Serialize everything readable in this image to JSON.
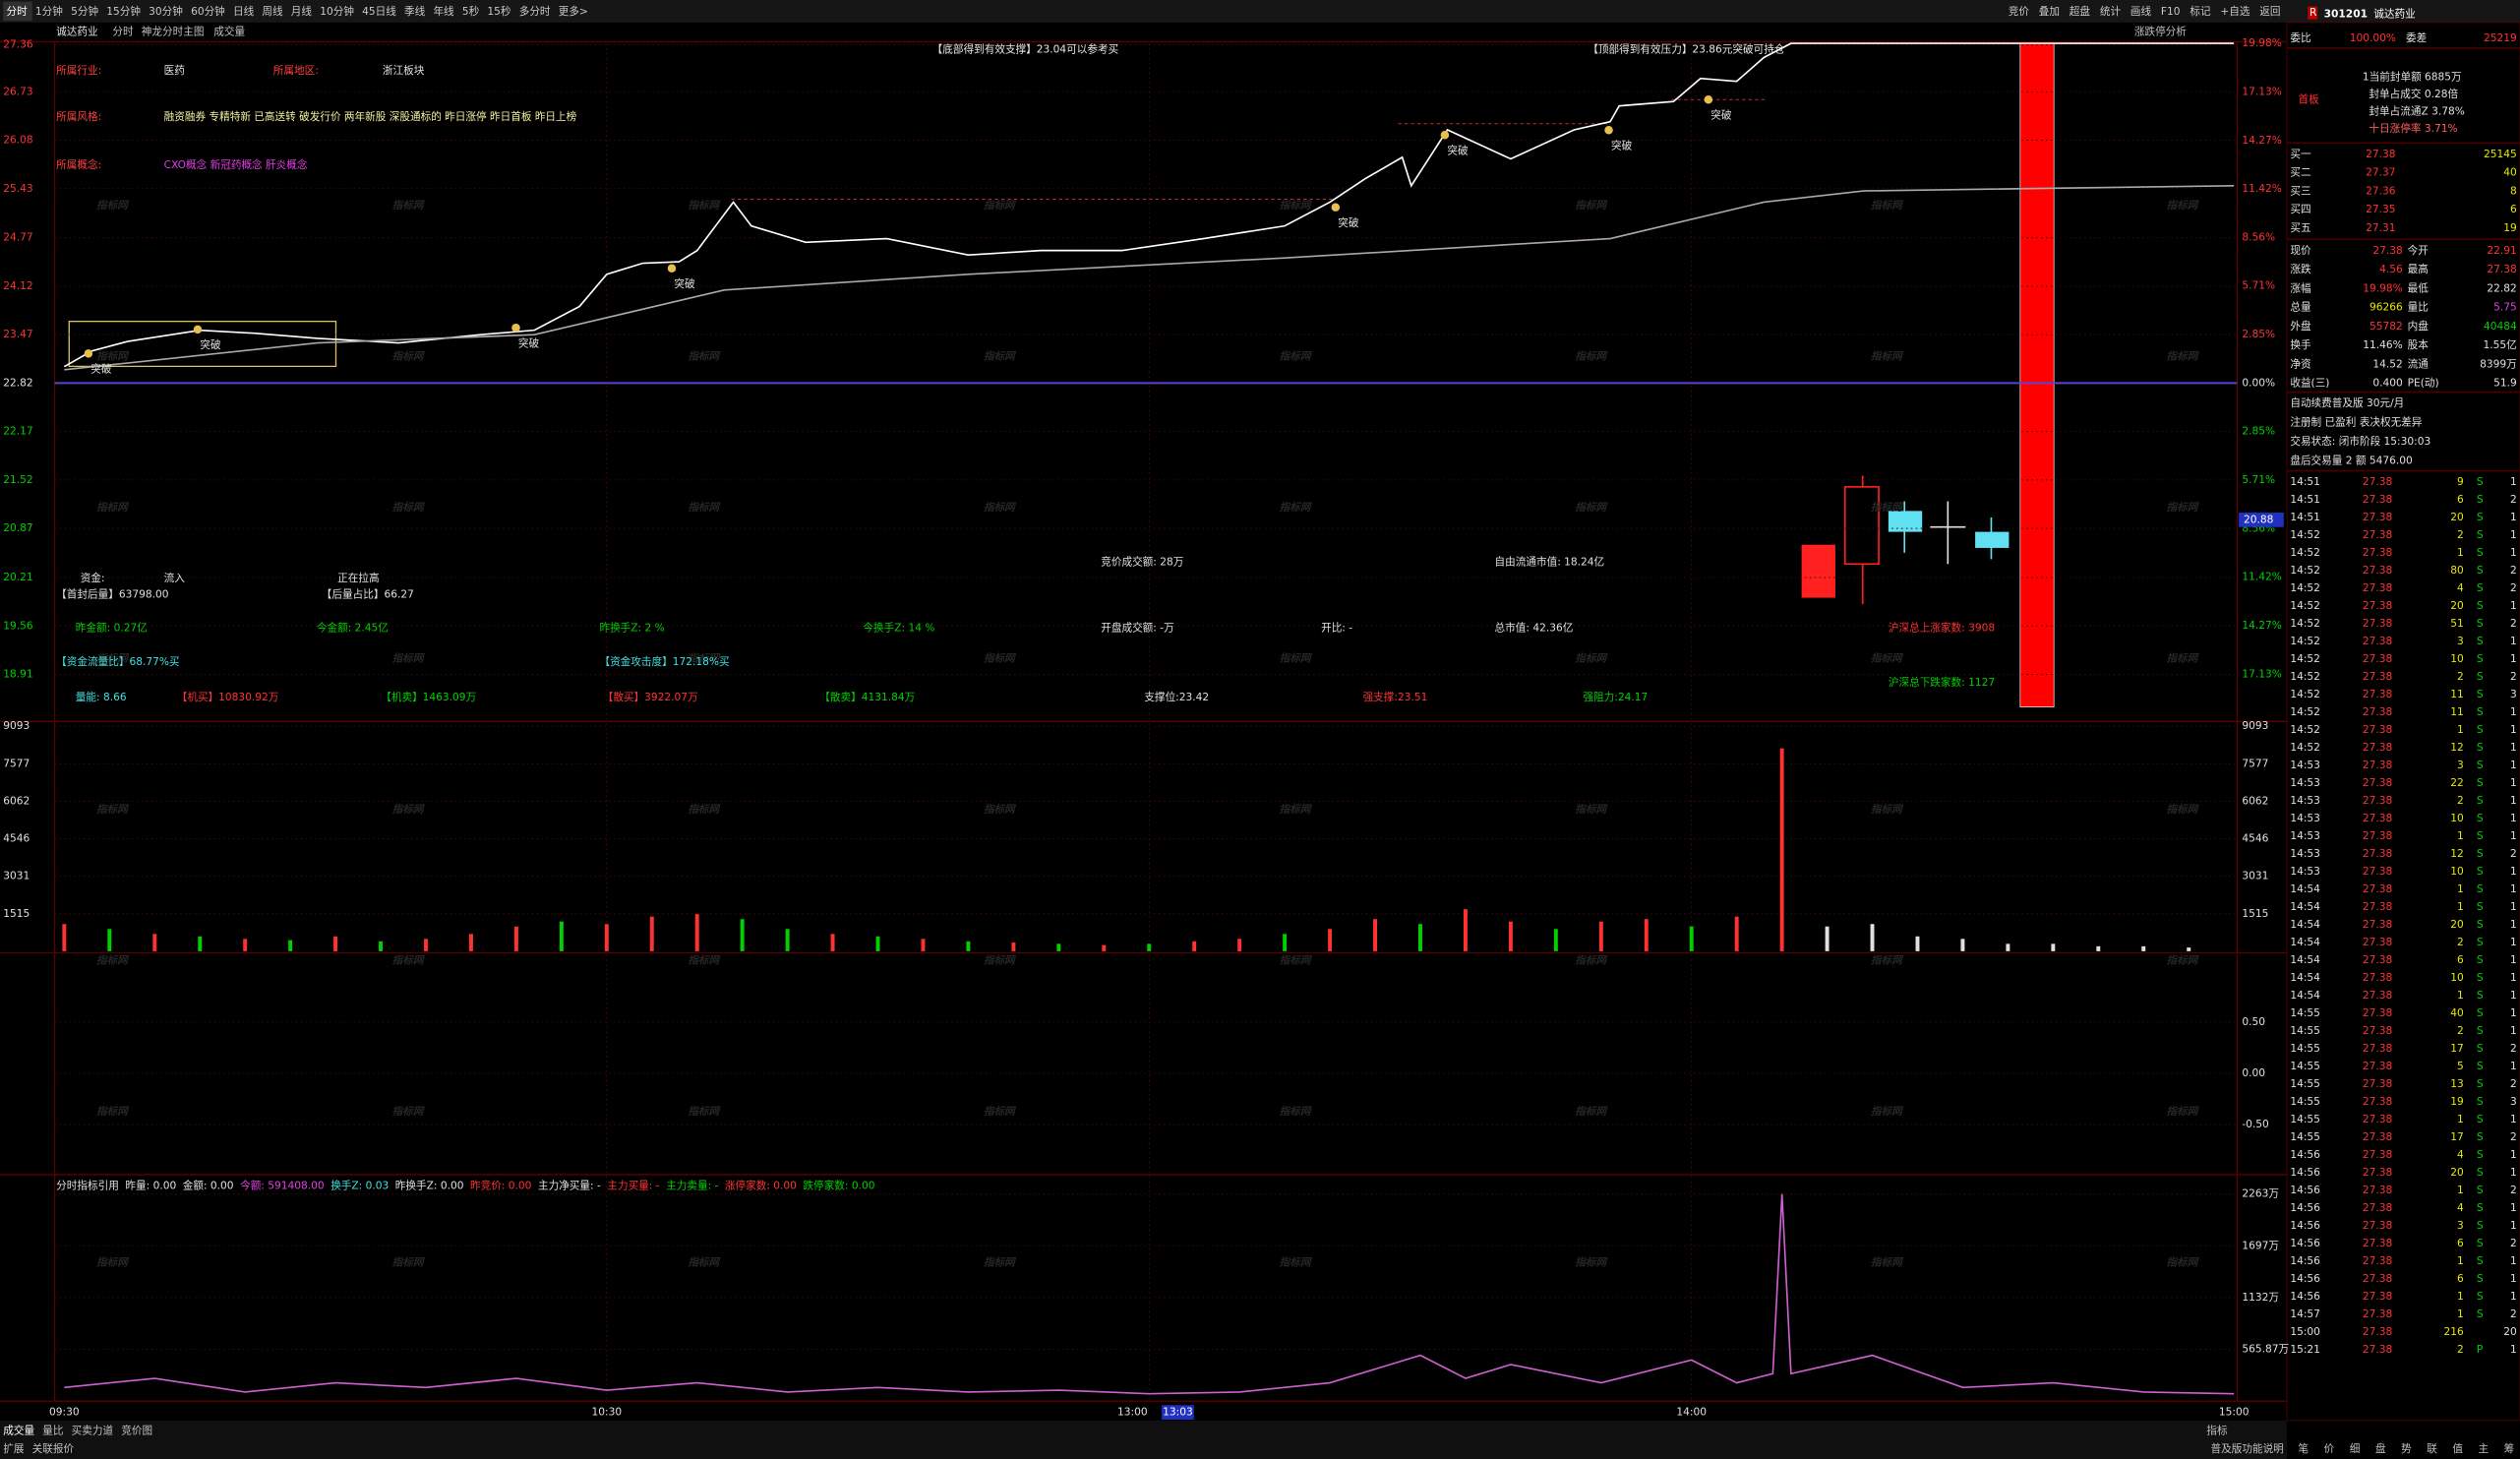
{
  "toolbar": {
    "left": [
      "分时",
      "1分钟",
      "5分钟",
      "15分钟",
      "30分钟",
      "60分钟",
      "日线",
      "周线",
      "月线",
      "10分钟",
      "45日线",
      "季线",
      "年线",
      "5秒",
      "15秒",
      "多分时",
      "更多>"
    ],
    "right": [
      "竞价",
      "叠加",
      "超盘",
      "统计",
      "画线",
      "F10",
      "标记",
      "+自选",
      "返回"
    ]
  },
  "header": [
    "诚达药业",
    "分时",
    "神龙分时主图",
    "成交量"
  ],
  "analysis_link": "涨跌停分析",
  "watermark": "指标网",
  "chart_data": [
    {
      "type": "line",
      "series": [
        {
          "color": "#ffffff",
          "x": [
            "09:30",
            "09:33",
            "09:37",
            "09:45",
            "09:51",
            "09:58",
            "10:07",
            "10:16",
            "10:22",
            "10:27",
            "10:30",
            "10:34",
            "10:38",
            "10:40",
            "10:44",
            "10:46",
            "10:52",
            "11:01",
            "11:10",
            "11:18",
            "11:27",
            "13:06",
            "13:15",
            "13:20",
            "13:24",
            "13:28",
            "13:29",
            "13:33",
            "13:40",
            "13:47",
            "13:51",
            "13:52",
            "13:58",
            "14:01",
            "14:05",
            "14:08",
            "14:11",
            "14:30",
            "15:00"
          ],
          "values": [
            23.04,
            23.25,
            23.38,
            23.53,
            23.49,
            23.42,
            23.36,
            23.47,
            23.53,
            23.85,
            24.28,
            24.43,
            24.45,
            24.6,
            25.25,
            24.93,
            24.71,
            24.76,
            24.54,
            24.6,
            24.6,
            24.76,
            24.93,
            25.25,
            25.57,
            25.85,
            25.47,
            26.22,
            25.83,
            26.22,
            26.33,
            26.54,
            26.6,
            26.91,
            26.87,
            27.19,
            27.38,
            27.38,
            27.38
          ]
        },
        {
          "color": "#a8a8a8",
          "x": [
            "09:30",
            "09:58",
            "10:22",
            "10:43",
            "11:10",
            "13:15",
            "13:51",
            "14:08",
            "14:19",
            "15:00"
          ],
          "values": [
            23.0,
            23.36,
            23.47,
            24.07,
            24.28,
            24.5,
            24.76,
            25.25,
            25.4,
            25.47
          ]
        }
      ],
      "ylim": [
        18.3,
        27.38
      ],
      "yticks": [
        27.36,
        26.73,
        26.08,
        25.43,
        24.77,
        24.12,
        23.47,
        22.82,
        22.17,
        21.52,
        20.87,
        20.21,
        19.56,
        18.91
      ],
      "y2lim": [
        -19.81,
        19.98
      ],
      "y2ticks": [
        {
          "value": 19.98,
          "label": "19.98%"
        },
        {
          "value": 17.13,
          "label": "17.13%"
        },
        {
          "value": 14.27,
          "label": "14.27%"
        },
        {
          "value": 11.42,
          "label": "11.42%"
        },
        {
          "value": 8.56,
          "label": "8.56%"
        },
        {
          "value": 5.71,
          "label": "5.71%"
        },
        {
          "value": 2.85,
          "label": "2.85%"
        },
        {
          "value": 0,
          "label": "0.00%"
        },
        {
          "value": -2.85,
          "label": "2.85%"
        },
        {
          "value": -5.71,
          "label": "5.71%"
        },
        {
          "value": -8.56,
          "label": "8.56%"
        },
        {
          "value": -11.42,
          "label": "11.42%"
        },
        {
          "value": -14.27,
          "label": "14.27%"
        },
        {
          "value": -17.13,
          "label": "17.13%"
        }
      ],
      "grid": true,
      "cursor_price": "20.88",
      "banners": [
        "【底部得到有效支撑】23.04可以参考买",
        "【顶部得到有效压力】23.86元突破可持仓"
      ],
      "sectors": [
        {
          "label": "所属行业:",
          "value": "医药"
        },
        {
          "label": "所属地区:",
          "value": "浙江板块"
        },
        {
          "label": "所属风格:",
          "value": "融资融券 专精特新 已高送转 破发行价 两年新股 深股通标的 昨日涨停 昨日首板 昨日上榜"
        },
        {
          "label": "所属概念:",
          "value": "CXO概念 新冠药概念 肝炎概念"
        }
      ],
      "markers": [
        "突破",
        "突破",
        "突破",
        "突破",
        "突破",
        "突破",
        "突破",
        "突破"
      ],
      "info": [
        {
          "text": "资金:",
          "color": "#e0e0e0"
        },
        {
          "text": "流入",
          "color": "#e0e0e0"
        },
        {
          "text": "正在拉高",
          "color": "#e0e0e0"
        },
        {
          "text": "竞价成交额: 28万",
          "color": "#e0e0e0"
        },
        {
          "text": "自由流通市值: 18.24亿",
          "color": "#e0e0e0"
        },
        {
          "text": "【首封后量】63798.00",
          "color": "#e0e0e0"
        },
        {
          "text": "【后量占比】66.27",
          "color": "#e0e0e0"
        },
        {
          "text": "昨金额: 0.27亿",
          "color": "#00d000"
        },
        {
          "text": "今金额: 2.45亿",
          "color": "#00d000"
        },
        {
          "text": "昨换手Z: 2 %",
          "color": "#00d000"
        },
        {
          "text": "今换手Z: 14 %",
          "color": "#00d000"
        },
        {
          "text": "开盘成交额: -万",
          "color": "#e0e0e0"
        },
        {
          "text": "开比: -",
          "color": "#e0e0e0"
        },
        {
          "text": "总市值: 42.36亿",
          "color": "#e0e0e0"
        },
        {
          "text": "沪深总上涨家数: 3908",
          "color": "#ff3232"
        },
        {
          "text": "【资金流量比】68.77%买",
          "color": "#40e0e0"
        },
        {
          "text": "【资金攻击度】172.18%买",
          "color": "#40e0e0"
        },
        {
          "text": "沪深总下跌家数: 1127",
          "color": "#00d000"
        },
        {
          "text": "量能: 8.66",
          "color": "#40e0e0"
        },
        {
          "text": "【机买】10830.92万",
          "color": "#ff3232"
        },
        {
          "text": "【机卖】1463.09万",
          "color": "#00d000"
        },
        {
          "text": "【散买】3922.07万",
          "color": "#ff3232"
        },
        {
          "text": "【散卖】4131.84万",
          "color": "#00d000"
        },
        {
          "text": "支撑位:23.42",
          "color": "#e0e0e0"
        },
        {
          "text": "强支撑:23.51",
          "color": "#ff3232"
        },
        {
          "text": "强阻力:24.17",
          "color": "#00d000"
        }
      ]
    },
    {
      "type": "bar",
      "x": [
        "09:30",
        "09:35",
        "09:40",
        "09:45",
        "09:50",
        "09:55",
        "10:00",
        "10:05",
        "10:10",
        "10:15",
        "10:20",
        "10:25",
        "10:30",
        "10:35",
        "10:40",
        "10:45",
        "10:50",
        "10:55",
        "11:00",
        "11:05",
        "11:10",
        "11:15",
        "11:20",
        "11:25",
        "13:00",
        "13:05",
        "13:10",
        "13:15",
        "13:20",
        "13:25",
        "13:30",
        "13:35",
        "13:40",
        "13:45",
        "13:50",
        "13:55",
        "14:00",
        "14:05",
        "14:10",
        "14:15",
        "14:20",
        "14:25",
        "14:30",
        "14:35",
        "14:40",
        "14:45",
        "14:50",
        "14:55"
      ],
      "values": [
        1100,
        900,
        700,
        600,
        500,
        450,
        600,
        400,
        500,
        700,
        1000,
        1200,
        1100,
        1400,
        1500,
        1300,
        900,
        700,
        600,
        500,
        400,
        350,
        300,
        250,
        300,
        400,
        500,
        700,
        900,
        1300,
        1100,
        1700,
        1200,
        900,
        1200,
        1300,
        1000,
        1400,
        8200,
        1000,
        1100,
        600,
        500,
        300,
        300,
        200,
        200,
        150
      ],
      "colors": [
        "#ff3232",
        "#00d000",
        "#ff3232",
        "#00d000",
        "#ff3232",
        "#00d000",
        "#ff3232",
        "#00d000",
        "#ff3232",
        "#ff3232",
        "#ff3232",
        "#00d000",
        "#ff3232",
        "#ff3232",
        "#ff3232",
        "#00d000",
        "#00d000",
        "#ff3232",
        "#00d000",
        "#ff3232",
        "#00d000",
        "#ff3232",
        "#00d000",
        "#ff3232",
        "#00d000",
        "#ff3232",
        "#ff3232",
        "#00d000",
        "#ff3232",
        "#ff3232",
        "#00d000",
        "#ff3232",
        "#ff3232",
        "#00d000",
        "#ff3232",
        "#ff3232",
        "#00d000",
        "#ff3232",
        "#ff3232",
        "#e0e0e0",
        "#e0e0e0",
        "#e0e0e0",
        "#e0e0e0",
        "#e0e0e0",
        "#e0e0e0",
        "#e0e0e0",
        "#e0e0e0",
        "#e0e0e0"
      ],
      "ylim": [
        0,
        9093
      ],
      "yticks": [
        9093,
        7577,
        6062,
        4546,
        3031,
        1515
      ]
    },
    {
      "type": "line",
      "ylim": [
        -0.94,
        1.16
      ],
      "yticks": [
        {
          "value": 0.5,
          "label": "0.50"
        },
        {
          "value": 0,
          "label": "0.00"
        },
        {
          "value": -0.5,
          "label": "-0.50"
        }
      ]
    },
    {
      "type": "line",
      "header": [
        {
          "text": "分时指标引用",
          "color": "#e0e0e0"
        },
        {
          "text": "昨量: 0.00",
          "color": "#e0e0e0"
        },
        {
          "text": "金额: 0.00",
          "color": "#e0e0e0"
        },
        {
          "text": "今额: 591408.00",
          "color": "#e040e0"
        },
        {
          "text": "换手Z: 0.03",
          "color": "#40e0e0"
        },
        {
          "text": "昨换手Z: 0.00",
          "color": "#e0e0e0"
        },
        {
          "text": "昨竞价: 0.00",
          "color": "#ff3232"
        },
        {
          "text": "主力净买量: -",
          "color": "#e0e0e0"
        },
        {
          "text": "主力买量: -",
          "color": "#ff3232"
        },
        {
          "text": "主力卖量: -",
          "color": "#00d000"
        },
        {
          "text": "涨停家数: 0.00",
          "color": "#ff3232"
        },
        {
          "text": "跌停家数: 0.00",
          "color": "#00d000"
        }
      ],
      "series": [
        {
          "color": "#d060d0",
          "x": [
            "09:30",
            "09:40",
            "09:50",
            "10:00",
            "10:10",
            "10:20",
            "10:30",
            "10:40",
            "10:50",
            "11:00",
            "11:10",
            "11:20",
            "11:30",
            "13:10",
            "13:20",
            "13:30",
            "13:35",
            "13:40",
            "13:50",
            "14:00",
            "14:05",
            "14:09",
            "14:10",
            "14:11",
            "14:20",
            "14:30",
            "14:40",
            "14:50",
            "15:00"
          ],
          "values": [
            150,
            250,
            100,
            200,
            150,
            250,
            120,
            200,
            100,
            150,
            100,
            120,
            80,
            100,
            200,
            500,
            250,
            400,
            200,
            450,
            200,
            300,
            2263,
            300,
            500,
            150,
            200,
            100,
            80
          ]
        }
      ],
      "ylim": [
        0,
        2440
      ],
      "yticks": [
        {
          "value": 2263,
          "label": "2263万"
        },
        {
          "value": 1697,
          "label": "1697万"
        },
        {
          "value": 1132,
          "label": "1132万"
        },
        {
          "value": 565.87,
          "label": "565.87万"
        }
      ],
      "xticks": [
        "09:30",
        "10:30",
        "13:00",
        "14:00",
        "15:00"
      ],
      "cursor": "13:03"
    }
  ],
  "quote": {
    "badge": "R",
    "code": "301201",
    "name": "诚达药业",
    "wb_label": "委比",
    "wb": "100.00%",
    "wc_label": "委差",
    "wc": "25219",
    "tag": "首板",
    "seal": [
      "1当前封单额 6885万",
      "封单占成交 0.28倍",
      "封单占流通Z 3.78%",
      "十日涨停率 3.71%"
    ],
    "book": [
      [
        "买一",
        "27.38",
        "25145"
      ],
      [
        "买二",
        "27.37",
        "40"
      ],
      [
        "买三",
        "27.36",
        "8"
      ],
      [
        "买四",
        "27.35",
        "6"
      ],
      [
        "买五",
        "27.31",
        "19"
      ]
    ],
    "stats": [
      [
        "现价",
        "27.38",
        "今开",
        "22.91"
      ],
      [
        "涨跌",
        "4.56",
        "最高",
        "27.38"
      ],
      [
        "涨幅",
        "19.98%",
        "最低",
        "22.82"
      ],
      [
        "总量",
        "96266",
        "量比",
        "5.75"
      ],
      [
        "外盘",
        "55782",
        "内盘",
        "40484"
      ],
      [
        "换手",
        "11.46%",
        "股本",
        "1.55亿"
      ],
      [
        "净资",
        "14.52",
        "流通",
        "8399万"
      ],
      [
        "收益(三)",
        "0.400",
        "PE(动)",
        "51.9"
      ]
    ],
    "notes": [
      "自动续费普及版 30元/月",
      "注册制 已盈利 表决权无差异",
      "交易状态: 闭市阶段 15:30:03",
      "盘后交易量 2 额 5476.00"
    ],
    "trades": [
      [
        "14:51",
        "27.38",
        "9",
        "S",
        "1"
      ],
      [
        "14:51",
        "27.38",
        "6",
        "S",
        "2"
      ],
      [
        "14:51",
        "27.38",
        "20",
        "S",
        "1"
      ],
      [
        "14:52",
        "27.38",
        "2",
        "S",
        "1"
      ],
      [
        "14:52",
        "27.38",
        "1",
        "S",
        "1"
      ],
      [
        "14:52",
        "27.38",
        "80",
        "S",
        "2"
      ],
      [
        "14:52",
        "27.38",
        "4",
        "S",
        "2"
      ],
      [
        "14:52",
        "27.38",
        "20",
        "S",
        "1"
      ],
      [
        "14:52",
        "27.38",
        "51",
        "S",
        "2"
      ],
      [
        "14:52",
        "27.38",
        "3",
        "S",
        "1"
      ],
      [
        "14:52",
        "27.38",
        "10",
        "S",
        "1"
      ],
      [
        "14:52",
        "27.38",
        "2",
        "S",
        "2"
      ],
      [
        "14:52",
        "27.38",
        "11",
        "S",
        "3"
      ],
      [
        "14:52",
        "27.38",
        "11",
        "S",
        "1"
      ],
      [
        "14:52",
        "27.38",
        "1",
        "S",
        "1"
      ],
      [
        "14:52",
        "27.38",
        "12",
        "S",
        "1"
      ],
      [
        "14:53",
        "27.38",
        "3",
        "S",
        "1"
      ],
      [
        "14:53",
        "27.38",
        "22",
        "S",
        "1"
      ],
      [
        "14:53",
        "27.38",
        "2",
        "S",
        "1"
      ],
      [
        "14:53",
        "27.38",
        "10",
        "S",
        "1"
      ],
      [
        "14:53",
        "27.38",
        "1",
        "S",
        "1"
      ],
      [
        "14:53",
        "27.38",
        "12",
        "S",
        "2"
      ],
      [
        "14:53",
        "27.38",
        "10",
        "S",
        "1"
      ],
      [
        "14:54",
        "27.38",
        "1",
        "S",
        "1"
      ],
      [
        "14:54",
        "27.38",
        "1",
        "S",
        "1"
      ],
      [
        "14:54",
        "27.38",
        "20",
        "S",
        "1"
      ],
      [
        "14:54",
        "27.38",
        "2",
        "S",
        "1"
      ],
      [
        "14:54",
        "27.38",
        "6",
        "S",
        "1"
      ],
      [
        "14:54",
        "27.38",
        "10",
        "S",
        "1"
      ],
      [
        "14:54",
        "27.38",
        "1",
        "S",
        "1"
      ],
      [
        "14:55",
        "27.38",
        "40",
        "S",
        "1"
      ],
      [
        "14:55",
        "27.38",
        "2",
        "S",
        "1"
      ],
      [
        "14:55",
        "27.38",
        "17",
        "S",
        "2"
      ],
      [
        "14:55",
        "27.38",
        "5",
        "S",
        "1"
      ],
      [
        "14:55",
        "27.38",
        "13",
        "S",
        "2"
      ],
      [
        "14:55",
        "27.38",
        "19",
        "S",
        "3"
      ],
      [
        "14:55",
        "27.38",
        "1",
        "S",
        "1"
      ],
      [
        "14:55",
        "27.38",
        "17",
        "S",
        "2"
      ],
      [
        "14:56",
        "27.38",
        "4",
        "S",
        "1"
      ],
      [
        "14:56",
        "27.38",
        "20",
        "S",
        "1"
      ],
      [
        "14:56",
        "27.38",
        "1",
        "S",
        "2"
      ],
      [
        "14:56",
        "27.38",
        "4",
        "S",
        "1"
      ],
      [
        "14:56",
        "27.38",
        "3",
        "S",
        "1"
      ],
      [
        "14:56",
        "27.38",
        "6",
        "S",
        "2"
      ],
      [
        "14:56",
        "27.38",
        "1",
        "S",
        "1"
      ],
      [
        "14:56",
        "27.38",
        "6",
        "S",
        "1"
      ],
      [
        "14:56",
        "27.38",
        "1",
        "S",
        "1"
      ],
      [
        "14:57",
        "27.38",
        "1",
        "S",
        "2"
      ],
      [
        "15:00",
        "27.38",
        "216",
        "",
        "20"
      ],
      [
        "15:21",
        "27.38",
        "2",
        "P",
        "1"
      ]
    ]
  },
  "bottom": {
    "tabs": [
      "成交量",
      "量比",
      "买卖力道",
      "竞价图"
    ],
    "tabs2": [
      "扩展",
      "关联报价"
    ],
    "indicator": "指标",
    "help": "普及版功能说明",
    "side": [
      "笔",
      "价",
      "细",
      "盘",
      "势",
      "联",
      "值",
      "主",
      "筹"
    ]
  }
}
